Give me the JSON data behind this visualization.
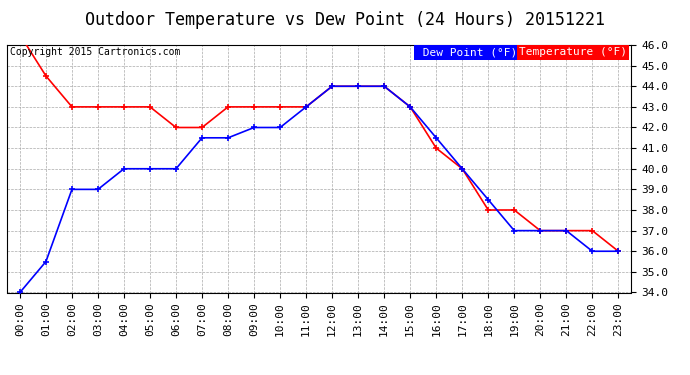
{
  "title": "Outdoor Temperature vs Dew Point (24 Hours) 20151221",
  "copyright": "Copyright 2015 Cartronics.com",
  "x_labels": [
    "00:00",
    "01:00",
    "02:00",
    "03:00",
    "04:00",
    "05:00",
    "06:00",
    "07:00",
    "08:00",
    "09:00",
    "10:00",
    "11:00",
    "12:00",
    "13:00",
    "14:00",
    "15:00",
    "16:00",
    "17:00",
    "18:00",
    "19:00",
    "20:00",
    "21:00",
    "22:00",
    "23:00"
  ],
  "temperature": [
    46.5,
    44.5,
    43.0,
    43.0,
    43.0,
    43.0,
    42.0,
    42.0,
    43.0,
    43.0,
    43.0,
    43.0,
    44.0,
    44.0,
    44.0,
    43.0,
    41.0,
    40.0,
    38.0,
    38.0,
    37.0,
    37.0,
    37.0,
    36.0
  ],
  "dew_point": [
    34.0,
    35.5,
    39.0,
    39.0,
    40.0,
    40.0,
    40.0,
    41.5,
    41.5,
    42.0,
    42.0,
    43.0,
    44.0,
    44.0,
    44.0,
    43.0,
    41.5,
    40.0,
    38.5,
    37.0,
    37.0,
    37.0,
    36.0,
    36.0
  ],
  "ylim": [
    34.0,
    46.0
  ],
  "yticks": [
    34.0,
    35.0,
    36.0,
    37.0,
    38.0,
    39.0,
    40.0,
    41.0,
    42.0,
    43.0,
    44.0,
    45.0,
    46.0
  ],
  "temp_color": "#ff0000",
  "dew_color": "#0000ff",
  "grid_color": "#aaaaaa",
  "bg_color": "#ffffff",
  "legend_dew_bg": "#0000ff",
  "legend_temp_bg": "#ff0000",
  "title_fontsize": 12,
  "tick_fontsize": 8,
  "copyright_fontsize": 7,
  "legend_fontsize": 8
}
